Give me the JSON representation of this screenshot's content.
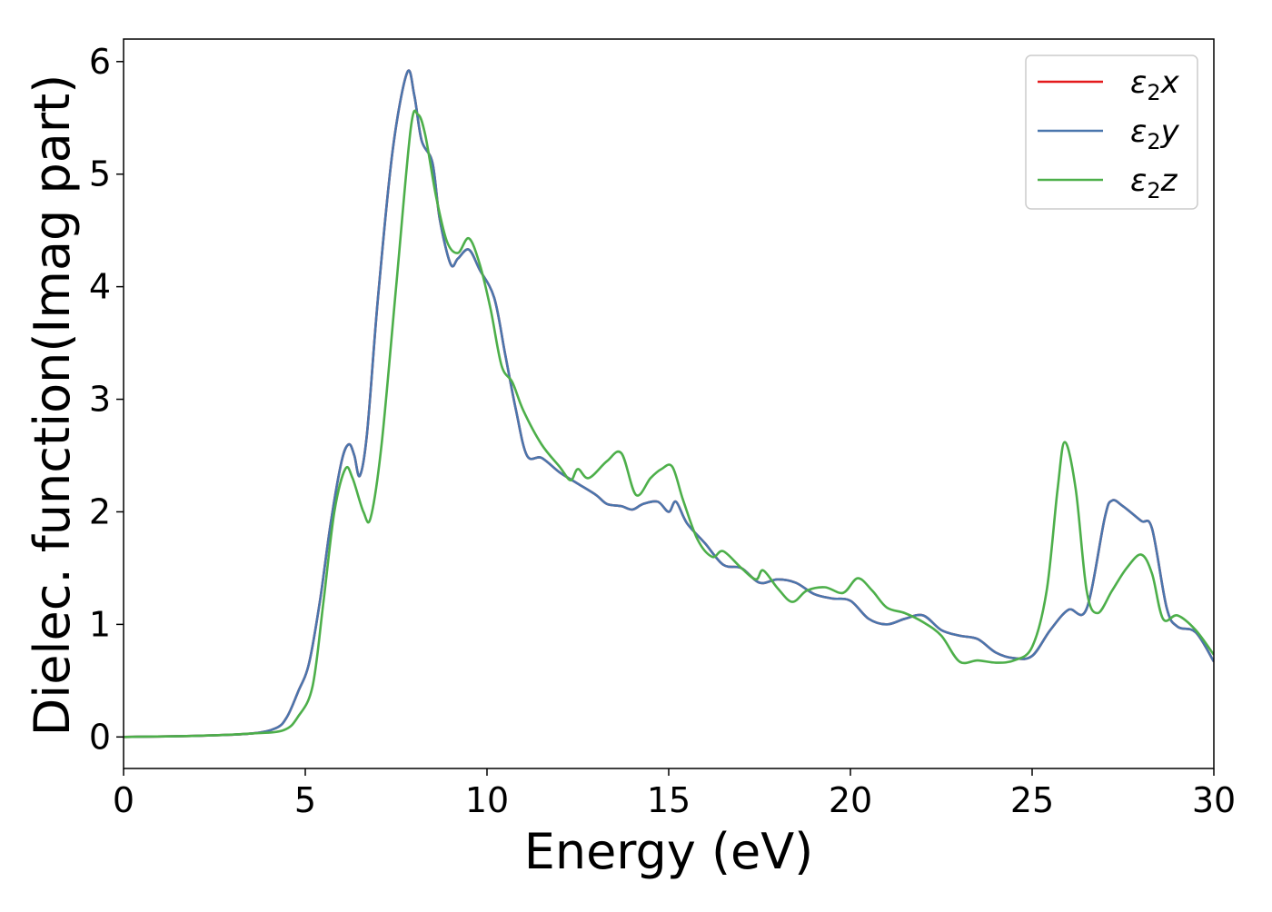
{
  "chart_data": {
    "type": "line",
    "title": "",
    "xlabel": "Energy (eV)",
    "ylabel": "Dielec. function(Imag part)",
    "xlim": [
      0,
      30
    ],
    "ylim": [
      -0.28,
      6.2
    ],
    "xticks": [
      0,
      5,
      10,
      15,
      20,
      25,
      30
    ],
    "yticks": [
      0,
      1,
      2,
      3,
      4,
      5,
      6
    ],
    "grid": false,
    "legend_position": "top-right",
    "series": [
      {
        "name": "ε2x",
        "legend": {
          "base": "ε",
          "sub": "2",
          "tail": "x"
        },
        "color": "#e41a1c",
        "points": [
          [
            0,
            0
          ],
          [
            2,
            0.01
          ],
          [
            3.5,
            0.03
          ],
          [
            4.2,
            0.08
          ],
          [
            4.5,
            0.18
          ],
          [
            4.8,
            0.4
          ],
          [
            5.1,
            0.65
          ],
          [
            5.4,
            1.2
          ],
          [
            5.7,
            1.9
          ],
          [
            6.0,
            2.45
          ],
          [
            6.2,
            2.6
          ],
          [
            6.35,
            2.5
          ],
          [
            6.5,
            2.32
          ],
          [
            6.7,
            2.7
          ],
          [
            7.0,
            3.9
          ],
          [
            7.4,
            5.2
          ],
          [
            7.8,
            5.9
          ],
          [
            8.0,
            5.7
          ],
          [
            8.2,
            5.3
          ],
          [
            8.5,
            5.1
          ],
          [
            8.7,
            4.6
          ],
          [
            9.0,
            4.2
          ],
          [
            9.2,
            4.25
          ],
          [
            9.5,
            4.33
          ],
          [
            9.8,
            4.15
          ],
          [
            10.2,
            3.9
          ],
          [
            10.5,
            3.4
          ],
          [
            10.8,
            2.9
          ],
          [
            11.1,
            2.5
          ],
          [
            11.5,
            2.48
          ],
          [
            12.0,
            2.35
          ],
          [
            12.5,
            2.25
          ],
          [
            13.0,
            2.15
          ],
          [
            13.3,
            2.07
          ],
          [
            13.7,
            2.05
          ],
          [
            14.0,
            2.02
          ],
          [
            14.3,
            2.07
          ],
          [
            14.7,
            2.09
          ],
          [
            15.0,
            2.0
          ],
          [
            15.2,
            2.09
          ],
          [
            15.5,
            1.9
          ],
          [
            16.0,
            1.72
          ],
          [
            16.5,
            1.53
          ],
          [
            17.0,
            1.5
          ],
          [
            17.5,
            1.37
          ],
          [
            18.0,
            1.4
          ],
          [
            18.5,
            1.37
          ],
          [
            19.0,
            1.27
          ],
          [
            19.5,
            1.23
          ],
          [
            20.0,
            1.21
          ],
          [
            20.5,
            1.05
          ],
          [
            21.0,
            1.0
          ],
          [
            21.5,
            1.05
          ],
          [
            22.0,
            1.08
          ],
          [
            22.5,
            0.95
          ],
          [
            23.0,
            0.9
          ],
          [
            23.5,
            0.87
          ],
          [
            24.0,
            0.75
          ],
          [
            24.5,
            0.7
          ],
          [
            25.0,
            0.72
          ],
          [
            25.5,
            0.95
          ],
          [
            26.0,
            1.13
          ],
          [
            26.5,
            1.14
          ],
          [
            27.0,
            1.95
          ],
          [
            27.2,
            2.1
          ],
          [
            27.5,
            2.05
          ],
          [
            28.0,
            1.92
          ],
          [
            28.3,
            1.85
          ],
          [
            28.7,
            1.15
          ],
          [
            29.0,
            0.98
          ],
          [
            29.5,
            0.93
          ],
          [
            30,
            0.67
          ]
        ]
      },
      {
        "name": "ε2y",
        "legend": {
          "base": "ε",
          "sub": "2",
          "tail": "y"
        },
        "color": "#4a76ad",
        "points": [
          [
            0,
            0
          ],
          [
            2,
            0.01
          ],
          [
            3.5,
            0.03
          ],
          [
            4.2,
            0.08
          ],
          [
            4.5,
            0.18
          ],
          [
            4.8,
            0.4
          ],
          [
            5.1,
            0.65
          ],
          [
            5.4,
            1.2
          ],
          [
            5.7,
            1.9
          ],
          [
            6.0,
            2.45
          ],
          [
            6.2,
            2.6
          ],
          [
            6.35,
            2.5
          ],
          [
            6.5,
            2.32
          ],
          [
            6.7,
            2.7
          ],
          [
            7.0,
            3.9
          ],
          [
            7.4,
            5.2
          ],
          [
            7.8,
            5.9
          ],
          [
            8.0,
            5.7
          ],
          [
            8.2,
            5.3
          ],
          [
            8.5,
            5.1
          ],
          [
            8.7,
            4.6
          ],
          [
            9.0,
            4.2
          ],
          [
            9.2,
            4.25
          ],
          [
            9.5,
            4.33
          ],
          [
            9.8,
            4.15
          ],
          [
            10.2,
            3.9
          ],
          [
            10.5,
            3.4
          ],
          [
            10.8,
            2.9
          ],
          [
            11.1,
            2.5
          ],
          [
            11.5,
            2.48
          ],
          [
            12.0,
            2.35
          ],
          [
            12.5,
            2.25
          ],
          [
            13.0,
            2.15
          ],
          [
            13.3,
            2.07
          ],
          [
            13.7,
            2.05
          ],
          [
            14.0,
            2.02
          ],
          [
            14.3,
            2.07
          ],
          [
            14.7,
            2.09
          ],
          [
            15.0,
            2.0
          ],
          [
            15.2,
            2.09
          ],
          [
            15.5,
            1.9
          ],
          [
            16.0,
            1.72
          ],
          [
            16.5,
            1.53
          ],
          [
            17.0,
            1.5
          ],
          [
            17.5,
            1.37
          ],
          [
            18.0,
            1.4
          ],
          [
            18.5,
            1.37
          ],
          [
            19.0,
            1.27
          ],
          [
            19.5,
            1.23
          ],
          [
            20.0,
            1.21
          ],
          [
            20.5,
            1.05
          ],
          [
            21.0,
            1.0
          ],
          [
            21.5,
            1.05
          ],
          [
            22.0,
            1.08
          ],
          [
            22.5,
            0.95
          ],
          [
            23.0,
            0.9
          ],
          [
            23.5,
            0.87
          ],
          [
            24.0,
            0.75
          ],
          [
            24.5,
            0.7
          ],
          [
            25.0,
            0.72
          ],
          [
            25.5,
            0.95
          ],
          [
            26.0,
            1.13
          ],
          [
            26.5,
            1.14
          ],
          [
            27.0,
            1.95
          ],
          [
            27.2,
            2.1
          ],
          [
            27.5,
            2.05
          ],
          [
            28.0,
            1.92
          ],
          [
            28.3,
            1.85
          ],
          [
            28.7,
            1.15
          ],
          [
            29.0,
            0.98
          ],
          [
            29.5,
            0.93
          ],
          [
            30,
            0.67
          ]
        ]
      },
      {
        "name": "ε2z",
        "legend": {
          "base": "ε",
          "sub": "2",
          "tail": "z"
        },
        "color": "#4daf4a",
        "points": [
          [
            0,
            0
          ],
          [
            2,
            0.01
          ],
          [
            3.5,
            0.03
          ],
          [
            4.4,
            0.06
          ],
          [
            4.8,
            0.18
          ],
          [
            5.2,
            0.45
          ],
          [
            5.5,
            1.2
          ],
          [
            5.8,
            2.0
          ],
          [
            6.1,
            2.38
          ],
          [
            6.3,
            2.3
          ],
          [
            6.6,
            2.0
          ],
          [
            6.8,
            1.95
          ],
          [
            7.1,
            2.6
          ],
          [
            7.5,
            4.0
          ],
          [
            7.9,
            5.4
          ],
          [
            8.1,
            5.53
          ],
          [
            8.3,
            5.35
          ],
          [
            8.6,
            4.8
          ],
          [
            8.9,
            4.4
          ],
          [
            9.2,
            4.3
          ],
          [
            9.5,
            4.43
          ],
          [
            9.8,
            4.2
          ],
          [
            10.1,
            3.8
          ],
          [
            10.4,
            3.3
          ],
          [
            10.7,
            3.15
          ],
          [
            11.0,
            2.9
          ],
          [
            11.5,
            2.6
          ],
          [
            12.0,
            2.4
          ],
          [
            12.3,
            2.28
          ],
          [
            12.5,
            2.38
          ],
          [
            12.8,
            2.3
          ],
          [
            13.3,
            2.45
          ],
          [
            13.7,
            2.52
          ],
          [
            14.1,
            2.15
          ],
          [
            14.5,
            2.3
          ],
          [
            14.8,
            2.38
          ],
          [
            15.1,
            2.4
          ],
          [
            15.4,
            2.1
          ],
          [
            15.8,
            1.75
          ],
          [
            16.2,
            1.6
          ],
          [
            16.5,
            1.65
          ],
          [
            17.0,
            1.5
          ],
          [
            17.4,
            1.4
          ],
          [
            17.6,
            1.48
          ],
          [
            18.0,
            1.32
          ],
          [
            18.4,
            1.2
          ],
          [
            18.8,
            1.3
          ],
          [
            19.3,
            1.33
          ],
          [
            19.8,
            1.28
          ],
          [
            20.2,
            1.41
          ],
          [
            20.6,
            1.3
          ],
          [
            21.0,
            1.15
          ],
          [
            21.5,
            1.1
          ],
          [
            22.0,
            1.02
          ],
          [
            22.5,
            0.9
          ],
          [
            23.0,
            0.67
          ],
          [
            23.5,
            0.68
          ],
          [
            24.0,
            0.66
          ],
          [
            24.5,
            0.68
          ],
          [
            25.0,
            0.8
          ],
          [
            25.4,
            1.3
          ],
          [
            25.7,
            2.2
          ],
          [
            25.9,
            2.62
          ],
          [
            26.2,
            2.2
          ],
          [
            26.5,
            1.3
          ],
          [
            26.8,
            1.1
          ],
          [
            27.2,
            1.3
          ],
          [
            27.6,
            1.5
          ],
          [
            28.0,
            1.62
          ],
          [
            28.3,
            1.45
          ],
          [
            28.6,
            1.05
          ],
          [
            29.0,
            1.08
          ],
          [
            29.5,
            0.95
          ],
          [
            30,
            0.73
          ]
        ]
      }
    ]
  }
}
